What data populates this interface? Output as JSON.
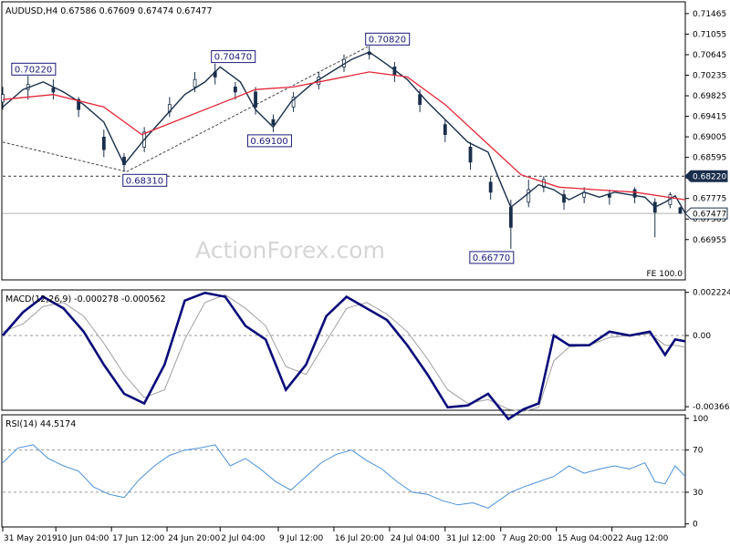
{
  "chart_data": [
    {
      "panel": "price",
      "type": "candlestick",
      "title": "AUDUSD,H4  0.67586 0.67609 0.67474 0.67477",
      "ylim": [
        0.6615,
        0.717
      ],
      "yticks": [
        "0.71465",
        "0.71055",
        "0.70645",
        "0.70235",
        "0.69825",
        "0.69415",
        "0.69005",
        "0.68595",
        "0.68185",
        "0.67775",
        "0.67365",
        "0.66955"
      ],
      "price_badges": [
        {
          "value": 0.6822,
          "label": "0.68220",
          "style": "dark"
        },
        {
          "value": 0.67477,
          "label": "0.67477",
          "style": "light"
        }
      ],
      "hlines": [
        0.6822,
        0.67477
      ],
      "fe_label": "FE 100.0",
      "watermark": "ActionForex.com",
      "annotations": [
        {
          "label": "0.70220",
          "bar": 5,
          "value": 0.7022
        },
        {
          "label": "0.68310",
          "bar": 49,
          "value": 0.6831
        },
        {
          "label": "0.70470",
          "bar": 84,
          "value": 0.7047
        },
        {
          "label": "0.69100",
          "bar": 107,
          "value": 0.691
        },
        {
          "label": "0.70820",
          "bar": 145,
          "value": 0.7082
        },
        {
          "label": "0.66770",
          "bar": 201,
          "value": 0.6677
        }
      ],
      "trendlines": [
        {
          "from": [
            0,
            0.689
          ],
          "to": [
            49,
            0.6831
          ]
        },
        {
          "from": [
            49,
            0.6831
          ],
          "to": [
            145,
            0.7082
          ]
        }
      ],
      "candles": [
        {
          "x": 0,
          "o": 0.697,
          "c": 0.6985,
          "h": 0.7,
          "l": 0.6955
        },
        {
          "x": 10,
          "o": 0.6995,
          "c": 0.7005,
          "h": 0.7022,
          "l": 0.6975
        },
        {
          "x": 20,
          "o": 0.6998,
          "c": 0.699,
          "h": 0.7015,
          "l": 0.6975
        },
        {
          "x": 30,
          "o": 0.6975,
          "c": 0.6955,
          "h": 0.698,
          "l": 0.694
        },
        {
          "x": 40,
          "o": 0.69,
          "c": 0.6875,
          "h": 0.6915,
          "l": 0.686
        },
        {
          "x": 48,
          "o": 0.686,
          "c": 0.6845,
          "h": 0.6868,
          "l": 0.6831
        },
        {
          "x": 56,
          "o": 0.688,
          "c": 0.691,
          "h": 0.692,
          "l": 0.687
        },
        {
          "x": 66,
          "o": 0.695,
          "c": 0.6965,
          "h": 0.698,
          "l": 0.694
        },
        {
          "x": 76,
          "o": 0.7,
          "c": 0.7015,
          "h": 0.703,
          "l": 0.699
        },
        {
          "x": 84,
          "o": 0.703,
          "c": 0.702,
          "h": 0.7047,
          "l": 0.7005
        },
        {
          "x": 92,
          "o": 0.7,
          "c": 0.699,
          "h": 0.701,
          "l": 0.6975
        },
        {
          "x": 100,
          "o": 0.699,
          "c": 0.696,
          "h": 0.7,
          "l": 0.6945
        },
        {
          "x": 107,
          "o": 0.6935,
          "c": 0.6925,
          "h": 0.6945,
          "l": 0.691
        },
        {
          "x": 115,
          "o": 0.696,
          "c": 0.698,
          "h": 0.699,
          "l": 0.695
        },
        {
          "x": 125,
          "o": 0.7005,
          "c": 0.702,
          "h": 0.703,
          "l": 0.6995
        },
        {
          "x": 135,
          "o": 0.704,
          "c": 0.7055,
          "h": 0.7065,
          "l": 0.703
        },
        {
          "x": 145,
          "o": 0.707,
          "c": 0.7065,
          "h": 0.7082,
          "l": 0.7055
        },
        {
          "x": 155,
          "o": 0.704,
          "c": 0.7025,
          "h": 0.705,
          "l": 0.701
        },
        {
          "x": 165,
          "o": 0.6985,
          "c": 0.6965,
          "h": 0.6995,
          "l": 0.695
        },
        {
          "x": 175,
          "o": 0.6925,
          "c": 0.6905,
          "h": 0.6935,
          "l": 0.689
        },
        {
          "x": 185,
          "o": 0.688,
          "c": 0.685,
          "h": 0.689,
          "l": 0.6835
        },
        {
          "x": 193,
          "o": 0.681,
          "c": 0.679,
          "h": 0.682,
          "l": 0.6775
        },
        {
          "x": 201,
          "o": 0.676,
          "c": 0.672,
          "h": 0.6775,
          "l": 0.6677
        },
        {
          "x": 208,
          "o": 0.677,
          "c": 0.6795,
          "h": 0.6815,
          "l": 0.676
        },
        {
          "x": 214,
          "o": 0.68,
          "c": 0.6815,
          "h": 0.6822,
          "l": 0.679
        },
        {
          "x": 222,
          "o": 0.6785,
          "c": 0.677,
          "h": 0.6795,
          "l": 0.6755
        },
        {
          "x": 230,
          "o": 0.678,
          "c": 0.679,
          "h": 0.68,
          "l": 0.6768
        },
        {
          "x": 240,
          "o": 0.6785,
          "c": 0.678,
          "h": 0.6795,
          "l": 0.6765
        },
        {
          "x": 250,
          "o": 0.6795,
          "c": 0.678,
          "h": 0.68,
          "l": 0.6768
        },
        {
          "x": 258,
          "o": 0.677,
          "c": 0.675,
          "h": 0.6778,
          "l": 0.67
        },
        {
          "x": 264,
          "o": 0.6765,
          "c": 0.6785,
          "h": 0.679,
          "l": 0.6758
        },
        {
          "x": 268,
          "o": 0.6759,
          "c": 0.6748,
          "h": 0.6761,
          "l": 0.6747
        }
      ],
      "close_line": {
        "x": [
          0,
          8,
          16,
          24,
          32,
          40,
          48,
          56,
          64,
          72,
          80,
          86,
          94,
          100,
          107,
          114,
          122,
          130,
          138,
          145,
          152,
          160,
          168,
          176,
          184,
          192,
          196,
          201,
          206,
          212,
          218,
          224,
          230,
          236,
          242,
          248,
          254,
          258,
          262,
          266,
          270
        ],
        "y": [
          0.696,
          0.6995,
          0.701,
          0.699,
          0.6965,
          0.693,
          0.6845,
          0.6895,
          0.694,
          0.6985,
          0.701,
          0.704,
          0.701,
          0.6955,
          0.692,
          0.697,
          0.7005,
          0.703,
          0.7055,
          0.707,
          0.7045,
          0.7015,
          0.697,
          0.693,
          0.689,
          0.687,
          0.682,
          0.676,
          0.678,
          0.6805,
          0.6795,
          0.6775,
          0.679,
          0.678,
          0.679,
          0.6785,
          0.678,
          0.676,
          0.677,
          0.6783,
          0.6748
        ]
      },
      "sma": {
        "name": "",
        "x": [
          0,
          20,
          40,
          55,
          70,
          85,
          100,
          115,
          130,
          145,
          160,
          175,
          190,
          205,
          220,
          235,
          250,
          270
        ],
        "y": [
          0.6975,
          0.6985,
          0.696,
          0.6905,
          0.6935,
          0.6965,
          0.6995,
          0.7,
          0.7015,
          0.703,
          0.702,
          0.6965,
          0.6895,
          0.6825,
          0.68,
          0.6795,
          0.679,
          0.6775
        ]
      }
    },
    {
      "panel": "macd",
      "type": "line",
      "title": "MACD(12,26,9) -0.000278 -0.000562",
      "ylim": [
        -0.00385,
        0.00235
      ],
      "yticks": [
        {
          "value": 0.002224,
          "label": "0.002224"
        },
        {
          "value": 0.0,
          "label": "0.00"
        },
        {
          "value": -0.003667,
          "label": "-0.003667"
        }
      ],
      "x": [
        0,
        8,
        16,
        24,
        32,
        40,
        48,
        56,
        64,
        72,
        80,
        88,
        96,
        104,
        112,
        120,
        128,
        136,
        144,
        152,
        160,
        168,
        176,
        184,
        192,
        200,
        206,
        212,
        218,
        224,
        232,
        240,
        248,
        256,
        262,
        266,
        270
      ],
      "series": [
        {
          "values": [
            0.0,
            0.0012,
            0.002,
            0.0014,
            0.0002,
            -0.0015,
            -0.003,
            -0.0035,
            -0.0015,
            0.0018,
            0.0022,
            0.002,
            0.0005,
            -0.0002,
            -0.0028,
            -0.0015,
            0.001,
            0.002,
            0.0014,
            0.0008,
            -0.0005,
            -0.002,
            -0.0037,
            -0.0036,
            -0.003,
            -0.0043,
            -0.0038,
            -0.0035,
            0.0,
            -0.0005,
            -0.0005,
            0.0002,
            0.0,
            0.0002,
            -0.001,
            -0.0002,
            -0.0003
          ]
        },
        {
          "values": [
            0.0002,
            0.0006,
            0.0015,
            0.0017,
            0.001,
            -0.0004,
            -0.002,
            -0.0032,
            -0.0028,
            -0.0002,
            0.0017,
            0.0021,
            0.0014,
            0.0005,
            -0.0016,
            -0.002,
            -0.0003,
            0.0014,
            0.0017,
            0.0011,
            0.0002,
            -0.0012,
            -0.0028,
            -0.0035,
            -0.0033,
            -0.0038,
            -0.0039,
            -0.0037,
            -0.0013,
            -0.0006,
            -0.0005,
            -0.0001,
            0.0,
            0.0001,
            -0.0005,
            -0.0005,
            -0.0006
          ]
        }
      ]
    },
    {
      "panel": "rsi",
      "type": "line",
      "title": "RSI(14) 44.5174",
      "ylim": [
        0,
        100
      ],
      "yticks": [
        100,
        70,
        30,
        0
      ],
      "hlines": [
        70,
        30
      ],
      "x": [
        0,
        6,
        12,
        18,
        24,
        30,
        36,
        42,
        48,
        54,
        60,
        66,
        72,
        78,
        84,
        90,
        96,
        102,
        108,
        114,
        120,
        126,
        132,
        138,
        144,
        150,
        156,
        162,
        168,
        174,
        180,
        186,
        192,
        198,
        201,
        206,
        212,
        218,
        224,
        230,
        236,
        242,
        248,
        254,
        258,
        262,
        266,
        270
      ],
      "series": [
        {
          "values": [
            58,
            72,
            75,
            62,
            55,
            50,
            35,
            28,
            25,
            42,
            55,
            65,
            70,
            72,
            75,
            55,
            62,
            52,
            40,
            32,
            45,
            58,
            66,
            70,
            60,
            52,
            40,
            30,
            28,
            22,
            18,
            20,
            15,
            25,
            30,
            35,
            40,
            45,
            55,
            48,
            52,
            55,
            52,
            58,
            40,
            38,
            55,
            45
          ]
        }
      ],
      "xticks": [
        {
          "bar": 0,
          "label": "31 May 2019"
        },
        {
          "bar": 21,
          "label": "10 Jun 04:00"
        },
        {
          "bar": 43,
          "label": "17 Jun 12:00"
        },
        {
          "bar": 65,
          "label": "24 Jun 20:00"
        },
        {
          "bar": 86,
          "label": "2 Jul 04:00"
        },
        {
          "bar": 109,
          "label": "9 Jul 12:00"
        },
        {
          "bar": 131,
          "label": "16 Jul 20:00"
        },
        {
          "bar": 153,
          "label": "24 Jul 04:00"
        },
        {
          "bar": 175,
          "label": "31 Jul 12:00"
        },
        {
          "bar": 197,
          "label": "7 Aug 20:00"
        },
        {
          "bar": 219,
          "label": "15 Aug 04:00"
        },
        {
          "bar": 241,
          "label": "22 Aug 12:00"
        }
      ]
    }
  ],
  "colors": {
    "price_line": "#1a2f4a",
    "sma": "#e32636",
    "macd": "#0a0a7a",
    "signal": "#a0a0a0",
    "rsi": "#4a90d9",
    "badge_dark": "#1a2e4a",
    "annotation": "#1a1a7a",
    "grid_dash": "#9a9a9a",
    "trendline": "#444444",
    "watermark": "#d6d6d6"
  }
}
